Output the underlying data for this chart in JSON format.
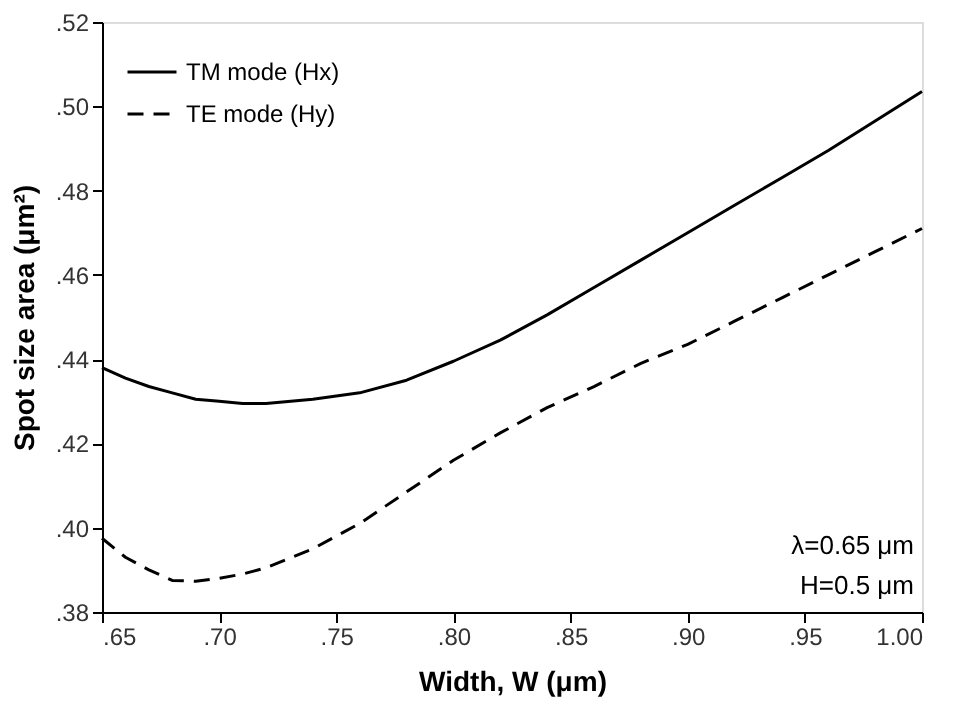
{
  "chart_data": {
    "type": "line",
    "xlabel": "Width, W (μm)",
    "ylabel": "Spot size area (μm²)",
    "xlim": [
      0.65,
      1.0
    ],
    "ylim": [
      0.38,
      0.52
    ],
    "xticks": [
      {
        "value": 0.65,
        "label": ".65"
      },
      {
        "value": 0.7,
        "label": ".70"
      },
      {
        "value": 0.75,
        "label": ".75"
      },
      {
        "value": 0.8,
        "label": ".80"
      },
      {
        "value": 0.85,
        "label": ".85"
      },
      {
        "value": 0.9,
        "label": ".90"
      },
      {
        "value": 0.95,
        "label": ".95"
      },
      {
        "value": 1.0,
        "label": "1.00"
      }
    ],
    "yticks": [
      {
        "value": 0.38,
        "label": ".38"
      },
      {
        "value": 0.4,
        "label": ".40"
      },
      {
        "value": 0.42,
        "label": ".42"
      },
      {
        "value": 0.44,
        "label": ".44"
      },
      {
        "value": 0.46,
        "label": ".46"
      },
      {
        "value": 0.48,
        "label": ".48"
      },
      {
        "value": 0.5,
        "label": ".50"
      },
      {
        "value": 0.52,
        "label": ".52"
      }
    ],
    "grid": false,
    "legend": "top left",
    "marker": "none",
    "series": [
      {
        "name": "TM mode (Hx)",
        "color": "#000000",
        "line_style": "solid",
        "x": [
          0.65,
          0.66,
          0.67,
          0.68,
          0.69,
          0.7,
          0.71,
          0.72,
          0.74,
          0.76,
          0.78,
          0.8,
          0.82,
          0.84,
          0.86,
          0.88,
          0.9,
          0.92,
          0.94,
          0.96,
          0.98,
          1.0
        ],
        "values": [
          0.438,
          0.4355,
          0.4335,
          0.432,
          0.4305,
          0.43,
          0.4295,
          0.4295,
          0.4305,
          0.432,
          0.435,
          0.4395,
          0.4445,
          0.4505,
          0.457,
          0.4635,
          0.47,
          0.4765,
          0.483,
          0.4895,
          0.4965,
          0.5035
        ]
      },
      {
        "name": "TE mode (Hy)",
        "color": "#000000",
        "line_style": "dashed",
        "x": [
          0.65,
          0.66,
          0.67,
          0.68,
          0.69,
          0.7,
          0.71,
          0.72,
          0.74,
          0.76,
          0.78,
          0.8,
          0.82,
          0.84,
          0.86,
          0.88,
          0.9,
          0.92,
          0.94,
          0.96,
          0.98,
          1.0
        ],
        "values": [
          0.3975,
          0.393,
          0.39,
          0.3875,
          0.3873,
          0.388,
          0.389,
          0.3905,
          0.395,
          0.401,
          0.4085,
          0.416,
          0.4225,
          0.4285,
          0.4335,
          0.439,
          0.4435,
          0.449,
          0.4545,
          0.46,
          0.4655,
          0.471
        ]
      }
    ],
    "annotations": [
      "λ=0.65 μm",
      "H=0.5 μm"
    ]
  }
}
